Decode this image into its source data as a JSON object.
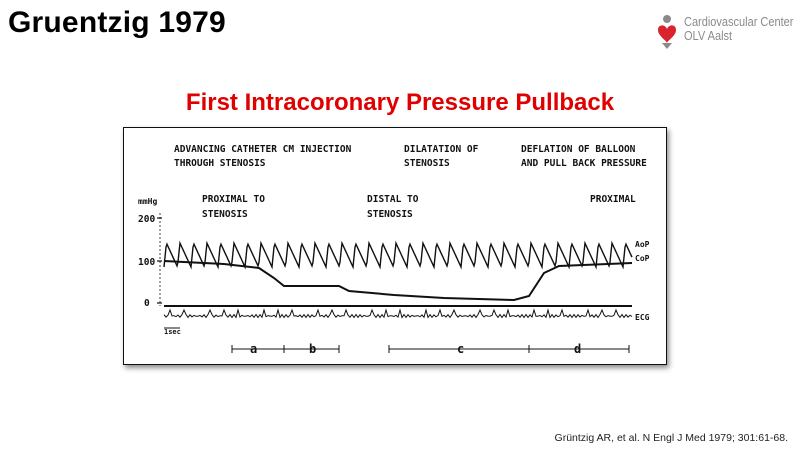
{
  "slide": {
    "title": "Gruentzig 1979",
    "subtitle": "First Intracoronary Pressure Pullback",
    "citation": "Grüntzig AR, et al. N Engl J Med 1979; 301:61-68."
  },
  "logo": {
    "line1": "Cardiovascular Center",
    "line2": "OLV Aalst",
    "accent_color": "#d9232e",
    "text_color": "#8a8a8a"
  },
  "figure": {
    "header_left_1": "ADVANCING CATHETER  CM INJECTION",
    "header_left_2": "THROUGH STENOSIS",
    "header_mid_1": "DILATATION OF",
    "header_mid_2": "STENOSIS",
    "header_right_1": "DEFLATION OF BALLOON",
    "header_right_2": "AND PULL BACK PRESSURE",
    "unit_label": "mmHg",
    "tick_200": "200",
    "tick_100": "100",
    "tick_0": "0",
    "label_proximal_1": "PROXIMAL TO",
    "label_proximal_2": "STENOSIS",
    "label_distal_1": "DISTAL TO",
    "label_distal_2": "STENOSIS",
    "label_proximal_end": "PROXIMAL",
    "trace_aop": "AoP",
    "trace_cop": "CoP",
    "trace_ecg": "ECG",
    "time_scale": "1sec",
    "phase_a": "a",
    "phase_b": "b",
    "phase_c": "c",
    "phase_d": "d"
  },
  "colors": {
    "title": "#000000",
    "subtitle": "#e00000"
  }
}
